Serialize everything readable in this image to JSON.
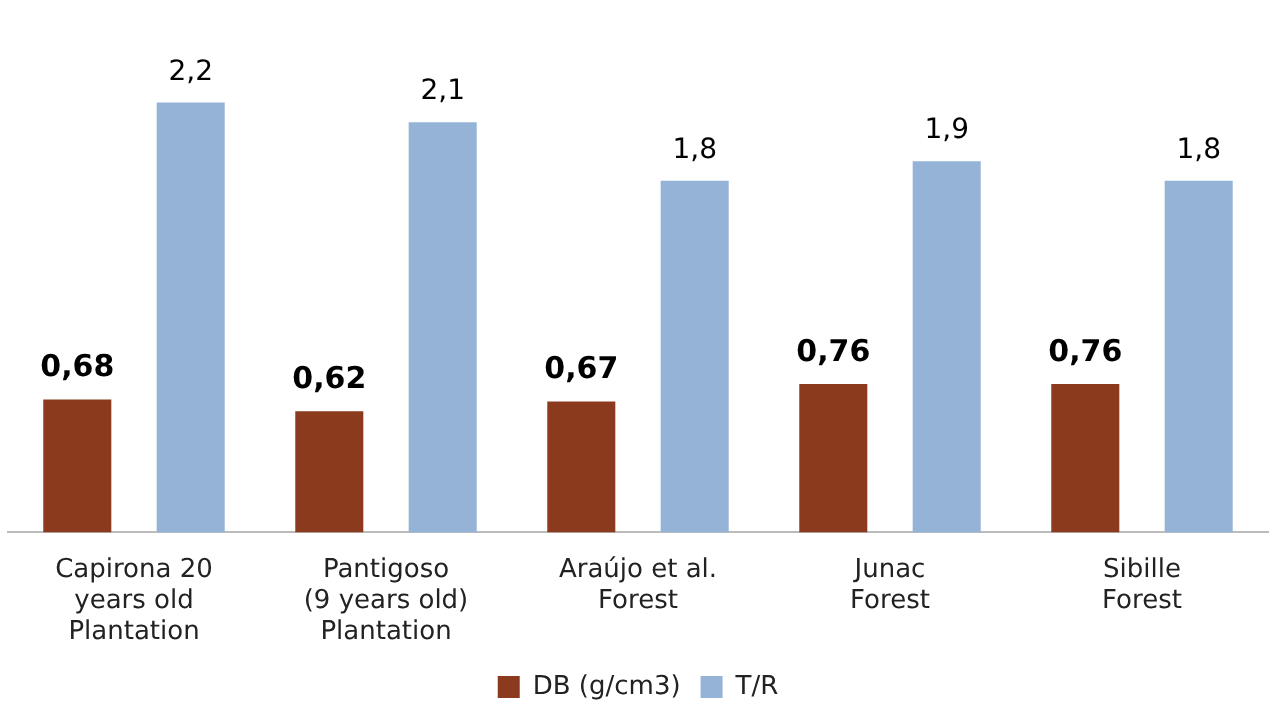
{
  "chart_data": {
    "type": "bar",
    "categories": [
      "Capirona 20\nyears old\nPlantation",
      "Pantigoso\n(9 years old)\nPlantation",
      "Araújo et al.\nForest",
      "Junac\nForest",
      "Sibille\nForest"
    ],
    "series": [
      {
        "name": "DB (g/cm3)",
        "color": "#8b3a1e",
        "values": [
          0.68,
          0.62,
          0.67,
          0.76,
          0.76
        ],
        "value_labels": [
          "0,68",
          "0,62",
          "0,67",
          "0,76",
          "0,76"
        ]
      },
      {
        "name": "T/R",
        "color": "#95b3d7",
        "values": [
          2.2,
          2.1,
          1.8,
          1.9,
          1.8
        ],
        "value_labels": [
          "2,2",
          "2,1",
          "1,8",
          "1,9",
          "1,8"
        ]
      }
    ],
    "grid": false,
    "legend": "bottom"
  }
}
